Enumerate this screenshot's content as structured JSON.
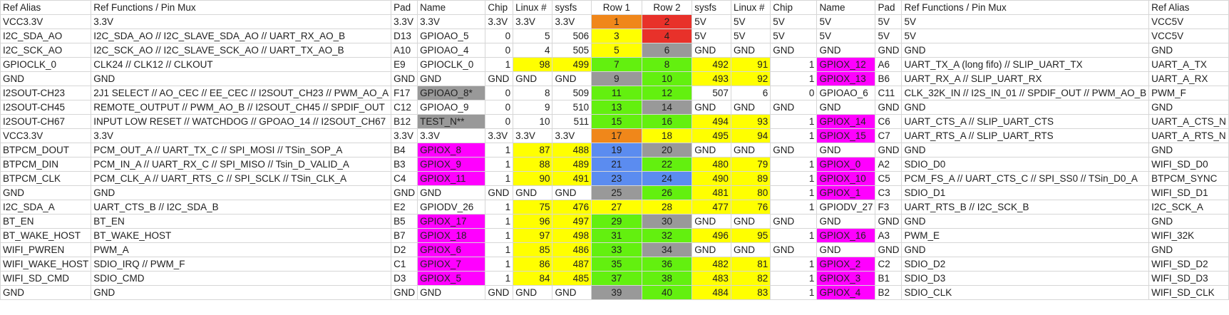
{
  "headers": [
    "Ref Alias",
    "Ref Functions / Pin Mux",
    "Pad",
    "Name",
    "Chip",
    "Linux #",
    "sysfs",
    "Row 1",
    "Row 2",
    "sysfs",
    "Linux #",
    "Chip",
    "Name",
    "Pad",
    "Ref Functions / Pin Mux",
    "Ref Alias"
  ],
  "colors": {
    "orange": "#f0871a",
    "red": "#e8312a",
    "yellow": "#ffff00",
    "green": "#63f00f",
    "gray": "#999999",
    "blue": "#5b8cf0",
    "magenta": "#ff00ff"
  },
  "rows": [
    {
      "cells": [
        "VCC3.3V",
        "3.3V",
        "3.3V",
        "3.3V",
        "3.3V",
        "3.3V",
        "3.3V",
        "1",
        "2",
        "5V",
        "5V",
        "5V",
        "5V",
        "5V",
        "5V",
        "VCC5V"
      ]
    },
    {
      "cells": [
        "I2C_SDA_AO",
        "I2C_SDA_AO // I2C_SLAVE_SDA_AO // UART_RX_AO_B",
        "D13",
        "GPIOAO_5",
        "0",
        "5",
        "506",
        "3",
        "4",
        "5V",
        "5V",
        "5V",
        "5V",
        "5V",
        "5V",
        "VCC5V"
      ]
    },
    {
      "cells": [
        "I2C_SCK_AO",
        "I2C_SCK_AO // I2C_SLAVE_SCK_AO // UART_TX_AO_B",
        "A10",
        "GPIOAO_4",
        "0",
        "4",
        "505",
        "5",
        "6",
        "GND",
        "GND",
        "GND",
        "GND",
        "GND",
        "GND",
        "GND"
      ]
    },
    {
      "cells": [
        "GPIOCLK_0",
        "CLK24 // CLK12 // CLKOUT",
        "E9",
        "GPIOCLK_0",
        "1",
        "98",
        "499",
        "7",
        "8",
        "492",
        "91",
        "1",
        "GPIOX_12",
        "A6",
        "UART_TX_A (long fifo) // SLIP_UART_TX",
        "UART_A_TX"
      ]
    },
    {
      "cells": [
        "GND",
        "GND",
        "GND",
        "GND",
        "GND",
        "GND",
        "GND",
        "9",
        "10",
        "493",
        "92",
        "1",
        "GPIOX_13",
        "B6",
        "UART_RX_A // SLIP_UART_RX",
        "UART_A_RX"
      ]
    },
    {
      "cells": [
        "I2SOUT-CH23",
        "2J1 SELECT // AO_CEC // EE_CEC // I2SOUT_CH23 // PWM_AO_A",
        "F17",
        "GPIOAO_8*",
        "0",
        "8",
        "509",
        "11",
        "12",
        "507",
        "6",
        "0",
        "GPIOAO_6",
        "C11",
        "CLK_32K_IN // I2S_IN_01 // SPDIF_OUT // PWM_AO_B",
        "PWM_F"
      ]
    },
    {
      "cells": [
        "I2SOUT-CH45",
        "REMOTE_OUTPUT // PWM_AO_B // I2SOUT_CH45 // SPDIF_OUT",
        "C12",
        "GPIOAO_9",
        "0",
        "9",
        "510",
        "13",
        "14",
        "GND",
        "GND",
        "GND",
        "GND",
        "GND",
        "GND",
        "GND"
      ]
    },
    {
      "cells": [
        "I2SOUT-CH67",
        "INPUT LOW RESET // WATCHDOG // GPOAO_14 // I2SOUT_CH67",
        "B12",
        "TEST_N**",
        "0",
        "10",
        "511",
        "15",
        "16",
        "494",
        "93",
        "1",
        "GPIOX_14",
        "C6",
        "UART_CTS_A // SLIP_UART_CTS",
        "UART_A_CTS_N"
      ]
    },
    {
      "cells": [
        "VCC3.3V",
        "3.3V",
        "3.3V",
        "3.3V",
        "3.3V",
        "3.3V",
        "3.3V",
        "17",
        "18",
        "495",
        "94",
        "1",
        "GPIOX_15",
        "C7",
        "UART_RTS_A // SLIP_UART_RTS",
        "UART_A_RTS_N"
      ]
    },
    {
      "cells": [
        "BTPCM_DOUT",
        "PCM_OUT_A // UART_TX_C // SPI_MOSI // TSin_SOP_A",
        "B4",
        "GPIOX_8",
        "1",
        "87",
        "488",
        "19",
        "20",
        "GND",
        "GND",
        "GND",
        "GND",
        "GND",
        "GND",
        "GND"
      ]
    },
    {
      "cells": [
        "BTPCM_DIN",
        "PCM_IN_A // UART_RX_C // SPI_MISO // Tsin_D_VALID_A",
        "B3",
        "GPIOX_9",
        "1",
        "88",
        "489",
        "21",
        "22",
        "480",
        "79",
        "1",
        "GPIOX_0",
        "A2",
        "SDIO_D0",
        "WIFI_SD_D0"
      ]
    },
    {
      "cells": [
        "BTPCM_CLK",
        "PCM_CLK_A // UART_RTS_C // SPI_SCLK // TSin_CLK_A",
        "C4",
        "GPIOX_11",
        "1",
        "90",
        "491",
        "23",
        "24",
        "490",
        "89",
        "1",
        "GPIOX_10",
        "C5",
        "PCM_FS_A // UART_CTS_C // SPI_SS0 // TSin_D0_A",
        "BTPCM_SYNC"
      ]
    },
    {
      "cells": [
        "GND",
        "GND",
        "GND",
        "GND",
        "GND",
        "GND",
        "GND",
        "25",
        "26",
        "481",
        "80",
        "1",
        "GPIOX_1",
        "C3",
        "SDIO_D1",
        "WIFI_SD_D1"
      ]
    },
    {
      "cells": [
        "I2C_SDA_A",
        "UART_CTS_B // I2C_SDA_B",
        "E2",
        "GPIODV_26",
        "1",
        "75",
        "476",
        "27",
        "28",
        "477",
        "76",
        "1",
        "GPIODV_27",
        "F3",
        "UART_RTS_B // I2C_SCK_B",
        "I2C_SCK_A"
      ]
    },
    {
      "cells": [
        "BT_EN",
        "BT_EN",
        "B5",
        "GPIOX_17",
        "1",
        "96",
        "497",
        "29",
        "30",
        "GND",
        "GND",
        "GND",
        "GND",
        "GND",
        "GND",
        "GND"
      ]
    },
    {
      "cells": [
        "BT_WAKE_HOST",
        "BT_WAKE_HOST",
        "B7",
        "GPIOX_18",
        "1",
        "97",
        "498",
        "31",
        "32",
        "496",
        "95",
        "1",
        "GPIOX_16",
        "A3",
        "PWM_E",
        "WIFI_32K"
      ]
    },
    {
      "cells": [
        "WIFI_PWREN",
        "PWM_A",
        "D2",
        "GPIOX_6",
        "1",
        "85",
        "486",
        "33",
        "34",
        "GND",
        "GND",
        "GND",
        "GND",
        "GND",
        "GND",
        "GND"
      ]
    },
    {
      "cells": [
        "WIFI_WAKE_HOST",
        "SDIO_IRQ // PWM_F",
        "C1",
        "GPIOX_7",
        "1",
        "86",
        "487",
        "35",
        "36",
        "482",
        "81",
        "1",
        "GPIOX_2",
        "C2",
        "SDIO_D2",
        "WIFI_SD_D2"
      ]
    },
    {
      "cells": [
        "WIFI_SD_CMD",
        "SDIO_CMD",
        "D3",
        "GPIOX_5",
        "1",
        "84",
        "485",
        "37",
        "38",
        "483",
        "82",
        "1",
        "GPIOX_3",
        "B1",
        "SDIO_D3",
        "WIFI_SD_D3"
      ]
    },
    {
      "cells": [
        "GND",
        "GND",
        "GND",
        "GND",
        "GND",
        "GND",
        "GND",
        "39",
        "40",
        "484",
        "83",
        "1",
        "GPIOX_4",
        "B2",
        "SDIO_CLK",
        "WIFI_SD_CLK"
      ]
    }
  ]
}
